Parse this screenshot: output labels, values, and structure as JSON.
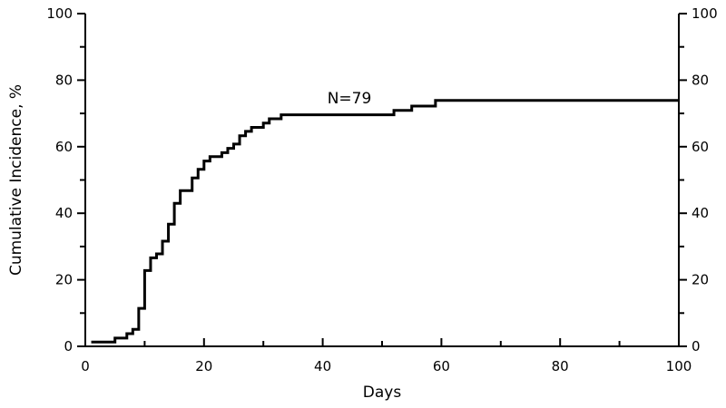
{
  "chart_data": {
    "type": "line",
    "title": "",
    "xlabel": "Days",
    "ylabel": "Cumulative Incidence, %",
    "xlim": [
      0,
      100
    ],
    "ylim": [
      0,
      100
    ],
    "x_ticks": [
      0,
      20,
      40,
      60,
      80,
      100
    ],
    "x_tick_labels": [
      "0",
      "20",
      "40",
      "60",
      "80",
      "100"
    ],
    "y_ticks": [
      0,
      20,
      40,
      60,
      80,
      100
    ],
    "y_tick_labels": [
      "0",
      "20",
      "40",
      "60",
      "80",
      "100"
    ],
    "step": true,
    "grid": false,
    "legend": null,
    "color": "#000000",
    "annotation": "N=79",
    "series": [
      {
        "x": [
          1,
          5,
          7,
          8,
          9,
          10,
          11,
          12,
          13,
          14,
          15,
          16,
          18,
          19,
          20,
          21,
          23,
          24,
          25,
          26,
          27,
          28,
          30,
          31,
          33,
          52,
          55,
          59,
          100
        ],
        "y": [
          1.3,
          2.5,
          3.8,
          5.1,
          11.4,
          22.8,
          26.6,
          27.8,
          31.6,
          36.7,
          43.0,
          46.8,
          50.6,
          53.2,
          55.7,
          57.0,
          58.2,
          59.5,
          60.8,
          63.3,
          64.6,
          65.8,
          67.1,
          68.4,
          69.6,
          70.9,
          72.2,
          73.9,
          73.9
        ]
      }
    ]
  }
}
